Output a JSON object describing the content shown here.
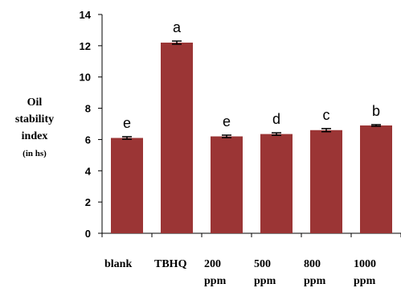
{
  "chart_data": {
    "type": "bar",
    "ylabel_lines": [
      "Oil",
      "stability",
      "index"
    ],
    "ylabel_unit": "(in hs)",
    "categories": [
      [
        "blank"
      ],
      [
        "TBHQ"
      ],
      [
        "200",
        "ppm"
      ],
      [
        "500",
        "ppm"
      ],
      [
        "800",
        "ppm"
      ],
      [
        "1000",
        "ppm"
      ]
    ],
    "values": [
      6.1,
      12.2,
      6.2,
      6.35,
      6.6,
      6.9
    ],
    "errors": [
      0.08,
      0.1,
      0.08,
      0.08,
      0.1,
      0.05
    ],
    "significance_letters": [
      "e",
      "a",
      "e",
      "d",
      "c",
      "b"
    ],
    "ylim": [
      0,
      14
    ],
    "yticks": [
      0,
      2,
      4,
      6,
      8,
      10,
      12,
      14
    ],
    "bar_color": "#9b3535",
    "grid": false,
    "legend": false
  }
}
